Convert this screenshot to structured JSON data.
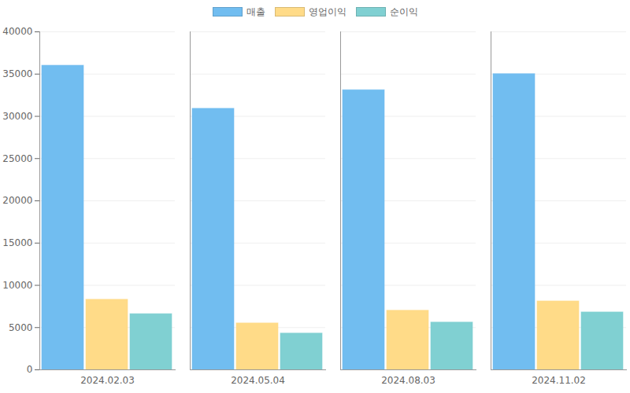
{
  "chart_data": {
    "type": "bar",
    "categories": [
      "2024.02.03",
      "2024.05.04",
      "2024.08.03",
      "2024.11.02"
    ],
    "series": [
      {
        "name": "매출",
        "color": "#71bdf0",
        "values": [
          36000,
          30900,
          33100,
          35000
        ]
      },
      {
        "name": "영업이익",
        "color": "#ffdb88",
        "values": [
          8300,
          5500,
          7000,
          8100
        ]
      },
      {
        "name": "순이익",
        "color": "#80d0d2",
        "values": [
          6600,
          4300,
          5600,
          6800
        ]
      }
    ],
    "ylim": [
      0,
      40000
    ],
    "yticks": [
      0,
      5000,
      10000,
      15000,
      20000,
      25000,
      30000,
      35000,
      40000
    ],
    "grid": true,
    "legend": "top"
  }
}
